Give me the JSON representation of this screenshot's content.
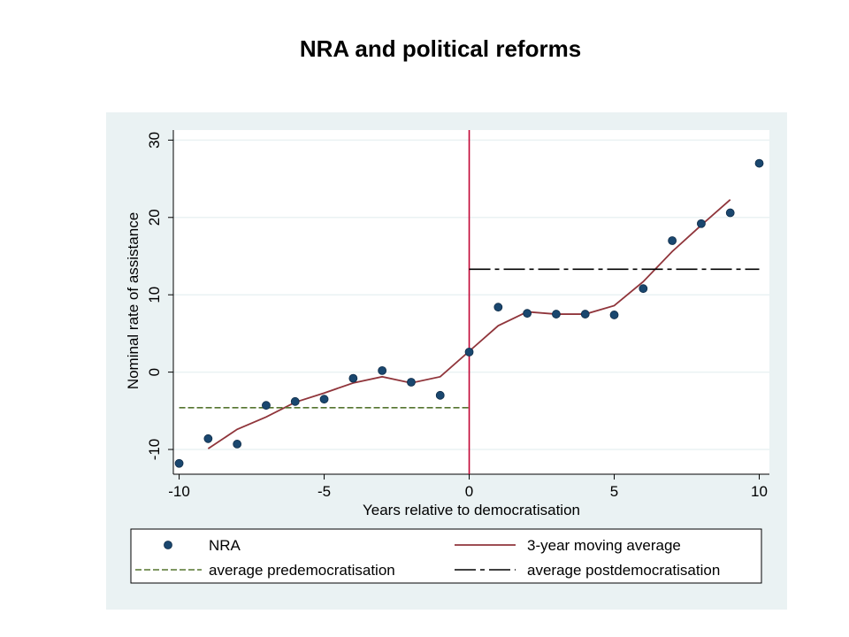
{
  "chart_data": {
    "type": "scatter",
    "title": "NRA and political reforms",
    "xlabel": "Years relative to democratisation",
    "ylabel": "Nominal rate of assistance",
    "xlim": [
      -10.2,
      10.35
    ],
    "ylim": [
      -13.2,
      31.3
    ],
    "xticks": [
      -10,
      -5,
      0,
      5,
      10
    ],
    "yticks": [
      -10,
      0,
      10,
      20,
      30
    ],
    "xtick_labels": [
      "-10",
      "-5",
      "0",
      "5",
      "10"
    ],
    "ytick_labels": [
      "-10",
      "0",
      "10",
      "20",
      "30"
    ],
    "grid": "horizontal",
    "vline": 0,
    "series": [
      {
        "name": "NRA",
        "kind": "scatter",
        "color": "#1a476f",
        "x": [
          -10,
          -9,
          -8,
          -7,
          -6,
          -5,
          -4,
          -3,
          -2,
          -1,
          0,
          1,
          2,
          3,
          4,
          5,
          6,
          7,
          8,
          9,
          10
        ],
        "y": [
          -11.8,
          -8.6,
          -9.3,
          -4.3,
          -3.8,
          -3.5,
          -0.8,
          0.2,
          -1.3,
          -3.0,
          2.6,
          8.4,
          7.6,
          7.5,
          7.5,
          7.4,
          10.8,
          17.0,
          19.2,
          20.6,
          27.0
        ]
      },
      {
        "name": "3-year moving average",
        "kind": "line",
        "color": "#90353b",
        "x": [
          -9,
          -8,
          -7,
          -6,
          -5,
          -4,
          -3,
          -2,
          -1,
          0,
          1,
          2,
          3,
          4,
          5,
          6,
          7,
          8,
          9
        ],
        "y": [
          -9.9,
          -7.4,
          -5.8,
          -3.9,
          -2.7,
          -1.4,
          -0.6,
          -1.4,
          -0.6,
          2.7,
          6.0,
          7.8,
          7.5,
          7.5,
          8.6,
          11.7,
          15.6,
          19.0,
          22.3
        ]
      },
      {
        "name": "average predemocratisation",
        "kind": "hline",
        "color": "#55752f",
        "x": [
          -10,
          0
        ],
        "y": [
          -4.6,
          -4.6
        ]
      },
      {
        "name": "average postdemocratisation",
        "kind": "hline",
        "color": "#000000",
        "x": [
          0,
          10
        ],
        "y": [
          13.3,
          13.3
        ]
      }
    ],
    "legend": {
      "placement": "bottom",
      "entries": [
        "NRA",
        "3-year moving average",
        "average predemocratisation",
        "average postdemocratisation"
      ]
    },
    "colors": {
      "outer_background": "#eaf2f3",
      "plot_background": "#ffffff",
      "vline": "#c10534"
    }
  }
}
